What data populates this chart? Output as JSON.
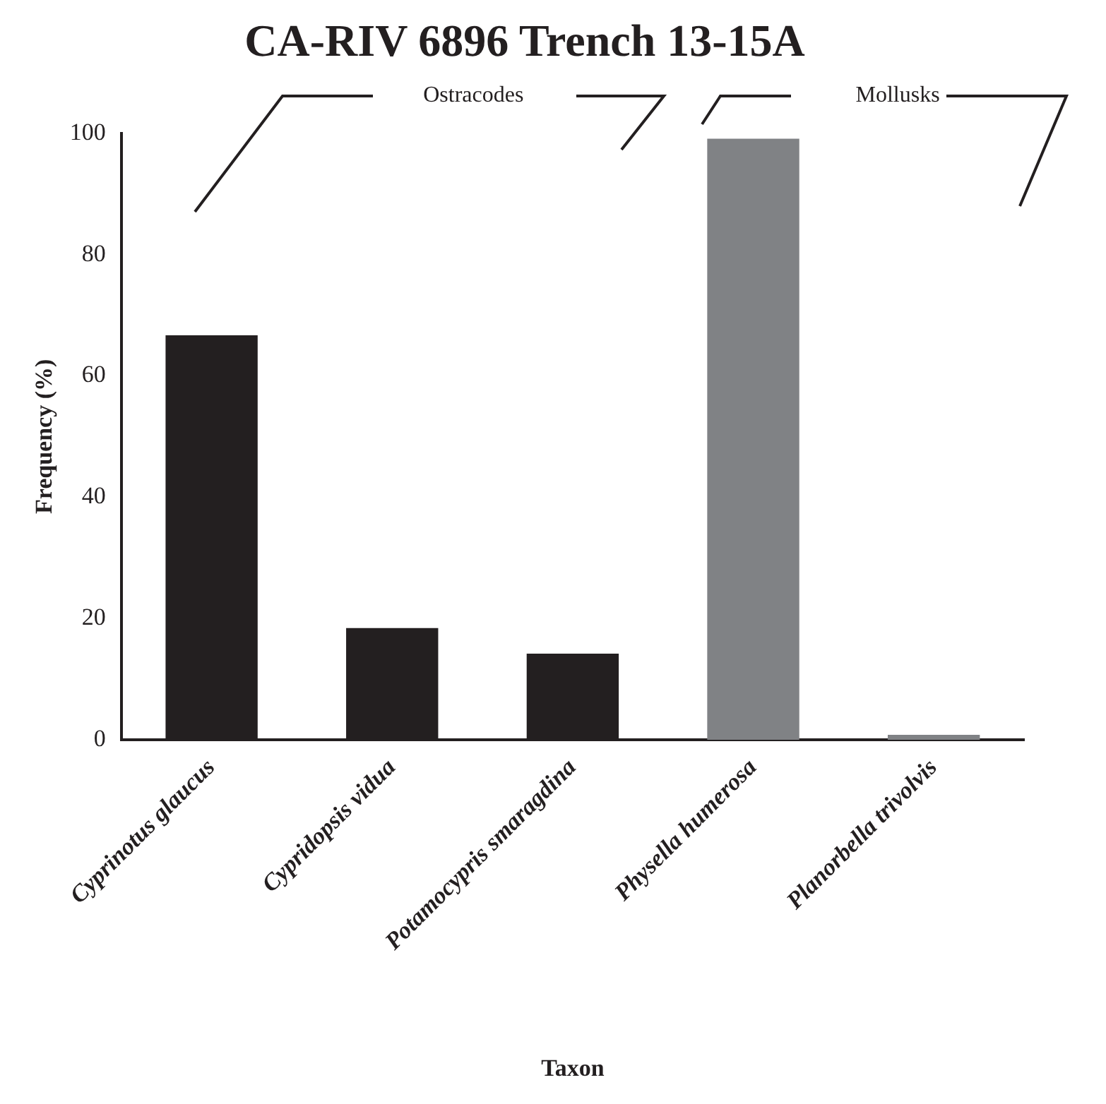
{
  "chart_data": {
    "type": "bar",
    "title": "CA-RIV 6896 Trench 13-15A",
    "xlabel": "Taxon",
    "ylabel": "Frequency (%)",
    "categories": [
      "Cyprinotus glaucus",
      "Cypridopsis vidua",
      "Potamocypris smaragdina",
      "Physella humerosa",
      "Planorbella trivolvis"
    ],
    "values": [
      66.7,
      18.4,
      14.2,
      99.1,
      0.8
    ],
    "colors": [
      "#231f20",
      "#231f20",
      "#231f20",
      "#808285",
      "#808285"
    ],
    "ylim": [
      0,
      100
    ],
    "yticks": [
      0,
      20,
      40,
      60,
      80,
      100
    ],
    "grid": false,
    "legend": false,
    "annotations": [
      "Ostracodes",
      "Mollusks"
    ]
  }
}
